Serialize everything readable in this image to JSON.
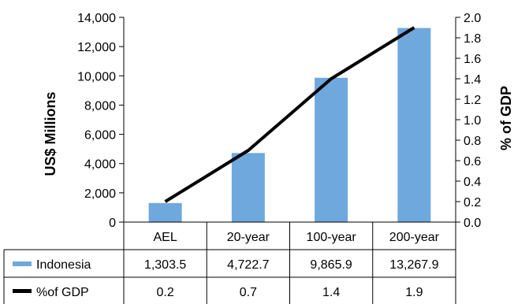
{
  "chart_data": {
    "type": "bar",
    "categories": [
      "AEL",
      "20-year",
      "100-year",
      "200-year"
    ],
    "series": [
      {
        "name": "Indonesia",
        "type": "bar",
        "axis": "left",
        "color": "#6fa8dc",
        "values": [
          1303.5,
          4722.7,
          9865.9,
          13267.9
        ],
        "value_labels": [
          "1,303.5",
          "4,722.7",
          "9,865.9",
          "13,267.9"
        ]
      },
      {
        "name": "%of GDP",
        "type": "line",
        "axis": "right",
        "color": "#000000",
        "values": [
          0.2,
          0.7,
          1.4,
          1.9
        ],
        "value_labels": [
          "0.2",
          "0.7",
          "1.4",
          "1.9"
        ]
      }
    ],
    "ylabel": "US$ Millions",
    "y2label": "% of GDP",
    "ylim": [
      0,
      14000
    ],
    "y2lim": [
      0,
      2.0
    ],
    "yticks": [
      0,
      2000,
      4000,
      6000,
      8000,
      10000,
      12000,
      14000
    ],
    "ytick_labels": [
      "0",
      "2,000",
      "4,000",
      "6,000",
      "8,000",
      "10,000",
      "12,000",
      "14,000"
    ],
    "y2ticks": [
      0,
      0.2,
      0.4,
      0.6,
      0.8,
      1.0,
      1.2,
      1.4,
      1.6,
      1.8,
      2.0
    ],
    "y2tick_labels": [
      "0.0",
      "0.2",
      "0.4",
      "0.6",
      "0.8",
      "1.0",
      "1.2",
      "1.4",
      "1.6",
      "1.8",
      "2.0"
    ],
    "data_table": true,
    "grid": false
  }
}
